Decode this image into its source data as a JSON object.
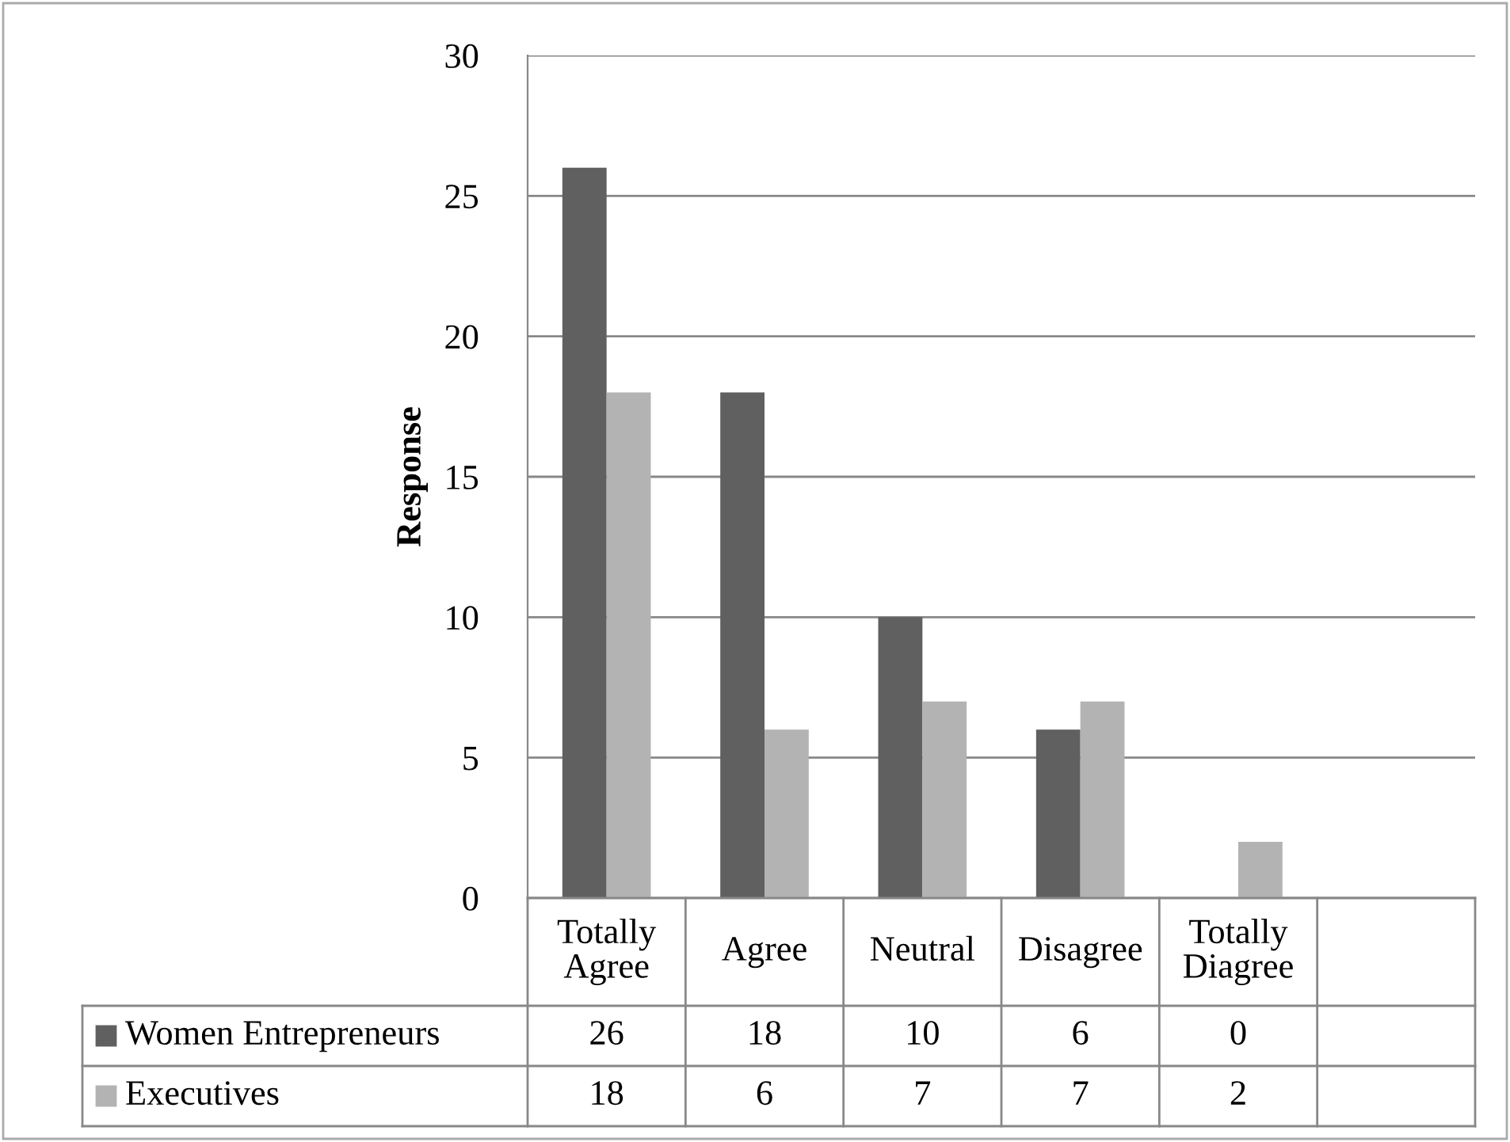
{
  "chart_data": {
    "type": "bar",
    "ylabel": "Response",
    "categories": [
      "Totally Agree",
      "Agree",
      "Neutral",
      "Disagree",
      "Totally Diagree",
      null
    ],
    "series": [
      {
        "name": "Women Entrepreneurs",
        "color": "#606060",
        "values": [
          26,
          18,
          10,
          6,
          0,
          null
        ]
      },
      {
        "name": "Executives",
        "color": "#b3b3b3",
        "values": [
          18,
          6,
          7,
          7,
          2,
          null
        ]
      }
    ],
    "ylim": [
      0,
      30
    ],
    "yticks": [
      0,
      5,
      10,
      15,
      20,
      25,
      30
    ],
    "grid": "y",
    "legend": "bottom",
    "data_labels": true
  }
}
